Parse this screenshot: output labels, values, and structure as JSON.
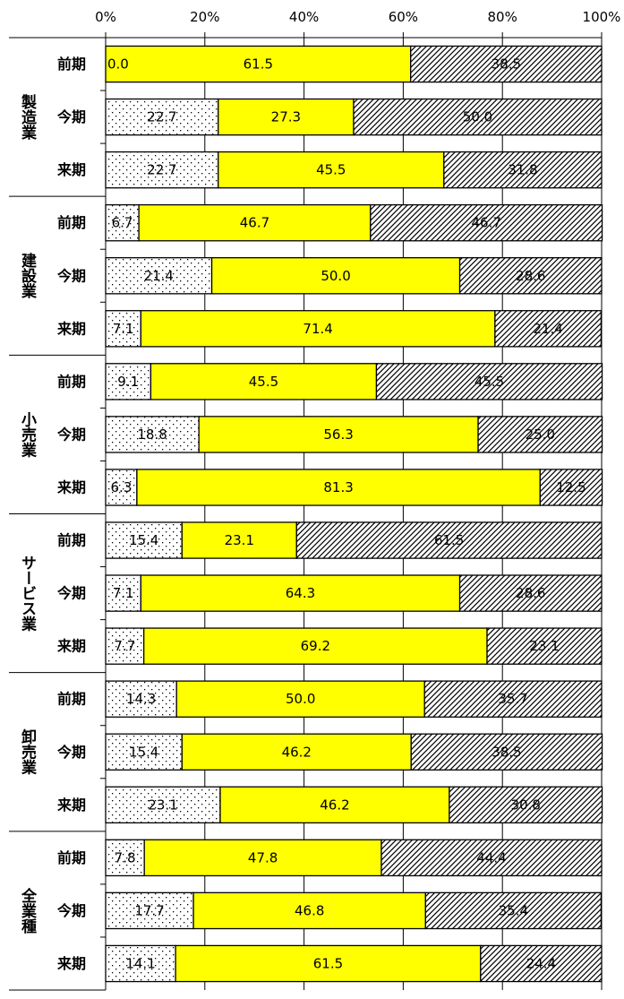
{
  "chart_data": {
    "type": "bar",
    "orientation": "horizontal",
    "stacked": true,
    "percent_stacked": true,
    "xlim": [
      0,
      100
    ],
    "x_ticks": [
      "0%",
      "20%",
      "40%",
      "60%",
      "80%",
      "100%"
    ],
    "x_axis_position": "top",
    "grid": true,
    "legend": "none",
    "series_styles": [
      {
        "fill": "#ffffff",
        "pattern": "dots"
      },
      {
        "fill": "#ffff00",
        "pattern": "solid"
      },
      {
        "fill": "#ffffff",
        "pattern": "diagonal-hatch"
      }
    ],
    "groups": [
      {
        "label": "製造業",
        "rows": [
          {
            "label": "前期",
            "values": [
              0.0,
              61.5,
              38.5
            ],
            "value_labels": [
              "0.0",
              "61.5",
              "38.5"
            ]
          },
          {
            "label": "今期",
            "values": [
              22.7,
              27.3,
              50.0
            ],
            "value_labels": [
              "22.7",
              "27.3",
              "50.0"
            ]
          },
          {
            "label": "来期",
            "values": [
              22.7,
              45.5,
              31.8
            ],
            "value_labels": [
              "22.7",
              "45.5",
              "31.8"
            ]
          }
        ]
      },
      {
        "label": "建設業",
        "rows": [
          {
            "label": "前期",
            "values": [
              6.7,
              46.7,
              46.7
            ],
            "value_labels": [
              "6.7",
              "46.7",
              "46.7"
            ]
          },
          {
            "label": "今期",
            "values": [
              21.4,
              50.0,
              28.6
            ],
            "value_labels": [
              "21.4",
              "50.0",
              "28.6"
            ]
          },
          {
            "label": "来期",
            "values": [
              7.1,
              71.4,
              21.4
            ],
            "value_labels": [
              "7.1",
              "71.4",
              "21.4"
            ]
          }
        ]
      },
      {
        "label": "小売業",
        "rows": [
          {
            "label": "前期",
            "values": [
              9.1,
              45.5,
              45.5
            ],
            "value_labels": [
              "9.1",
              "45.5",
              "45.5"
            ]
          },
          {
            "label": "今期",
            "values": [
              18.8,
              56.3,
              25.0
            ],
            "value_labels": [
              "18.8",
              "56.3",
              "25.0"
            ]
          },
          {
            "label": "来期",
            "values": [
              6.3,
              81.3,
              12.5
            ],
            "value_labels": [
              "6.3",
              "81.3",
              "12.5"
            ]
          }
        ]
      },
      {
        "label": "サービス業",
        "rows": [
          {
            "label": "前期",
            "values": [
              15.4,
              23.1,
              61.5
            ],
            "value_labels": [
              "15.4",
              "23.1",
              "61.5"
            ]
          },
          {
            "label": "今期",
            "values": [
              7.1,
              64.3,
              28.6
            ],
            "value_labels": [
              "7.1",
              "64.3",
              "28.6"
            ]
          },
          {
            "label": "来期",
            "values": [
              7.7,
              69.2,
              23.1
            ],
            "value_labels": [
              "7.7",
              "69.2",
              "23.1"
            ]
          }
        ]
      },
      {
        "label": "卸売業",
        "rows": [
          {
            "label": "前期",
            "values": [
              14.3,
              50.0,
              35.7
            ],
            "value_labels": [
              "14.3",
              "50.0",
              "35.7"
            ]
          },
          {
            "label": "今期",
            "values": [
              15.4,
              46.2,
              38.5
            ],
            "value_labels": [
              "15.4",
              "46.2",
              "38.5"
            ]
          },
          {
            "label": "来期",
            "values": [
              23.1,
              46.2,
              30.8
            ],
            "value_labels": [
              "23.1",
              "46.2",
              "30.8"
            ]
          }
        ]
      },
      {
        "label": "全業種",
        "rows": [
          {
            "label": "前期",
            "values": [
              7.8,
              47.8,
              44.4
            ],
            "value_labels": [
              "7.8",
              "47.8",
              "44.4"
            ]
          },
          {
            "label": "今期",
            "values": [
              17.7,
              46.8,
              35.4
            ],
            "value_labels": [
              "17.7",
              "46.8",
              "35.4"
            ]
          },
          {
            "label": "来期",
            "values": [
              14.1,
              61.5,
              24.4
            ],
            "value_labels": [
              "14.1",
              "61.5",
              "24.4"
            ]
          }
        ]
      }
    ]
  }
}
